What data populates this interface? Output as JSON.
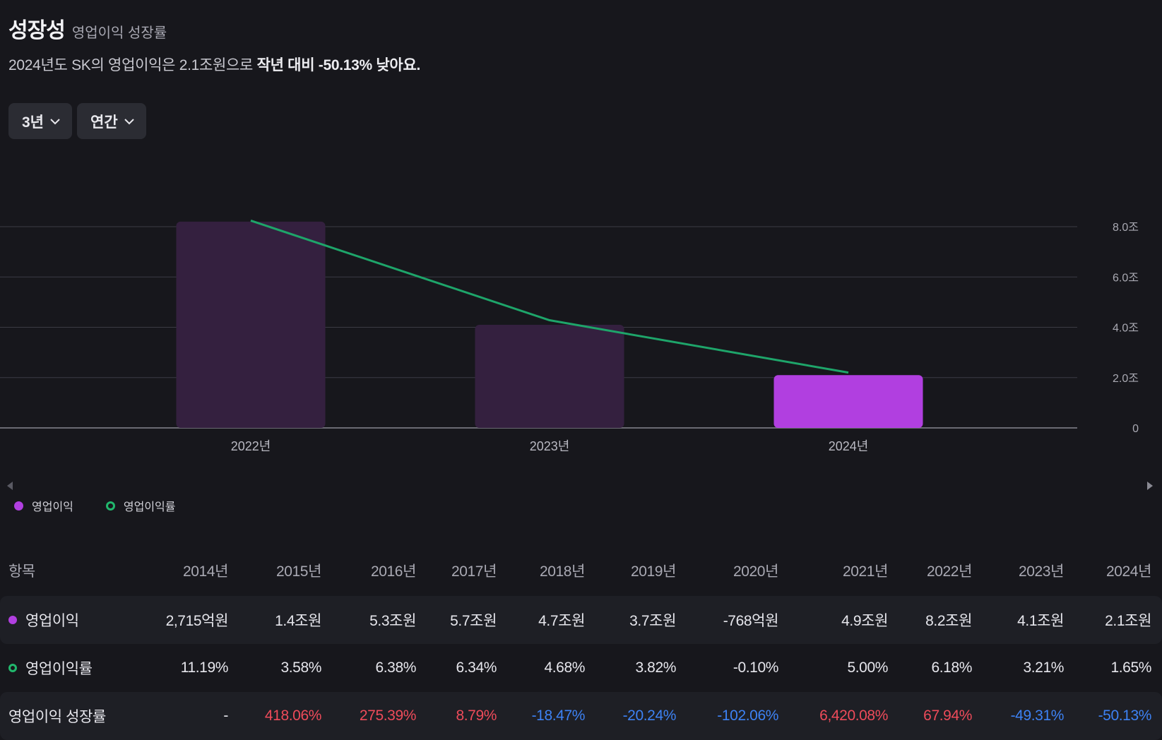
{
  "header": {
    "title": "성장성",
    "subtitle": "영업이익 성장률",
    "summary_plain": "2024년도 SK의 영업이익은 2.1조원으로 ",
    "summary_strong": "작년 대비 -50.13% 낮아요."
  },
  "controls": {
    "period_label": "3년",
    "frequency_label": "연간"
  },
  "colors": {
    "bar_active": "#b13fe0",
    "bar_inactive": "#34203f",
    "line": "#1ea56a",
    "grid": "#3b3b44",
    "positive": "#ee4b5a",
    "negative": "#3d82f4"
  },
  "chart_data": {
    "type": "bar",
    "categories": [
      "2022년",
      "2023년",
      "2024년"
    ],
    "series": [
      {
        "name": "영업이익",
        "type": "bar",
        "unit": "조원",
        "values": [
          8.2,
          4.1,
          2.1
        ]
      },
      {
        "name": "영업이익률",
        "type": "line",
        "unit": "%",
        "values": [
          6.18,
          3.21,
          1.65
        ]
      }
    ],
    "y_axis": {
      "ticks": [
        "0",
        "2.0조",
        "4.0조",
        "6.0조",
        "8.0조"
      ],
      "tick_values": [
        0,
        2,
        4,
        6,
        8
      ],
      "ylim": [
        0,
        8
      ]
    },
    "line_axis": {
      "ylim": [
        0,
        6
      ]
    },
    "highlight_category": "2024년",
    "legend": [
      "영업이익",
      "영업이익률"
    ]
  },
  "table": {
    "header_label": "항목",
    "years": [
      "2014년",
      "2015년",
      "2016년",
      "2017년",
      "2018년",
      "2019년",
      "2020년",
      "2021년",
      "2022년",
      "2023년",
      "2024년"
    ],
    "rows": [
      {
        "label": "영업이익",
        "marker": "filled",
        "values": [
          "2,715억원",
          "1.4조원",
          "5.3조원",
          "5.7조원",
          "4.7조원",
          "3.7조원",
          "-768억원",
          "4.9조원",
          "8.2조원",
          "4.1조원",
          "2.1조원"
        ]
      },
      {
        "label": "영업이익률",
        "marker": "ring",
        "values": [
          "11.19%",
          "3.58%",
          "6.38%",
          "6.34%",
          "4.68%",
          "3.82%",
          "-0.10%",
          "5.00%",
          "6.18%",
          "3.21%",
          "1.65%"
        ]
      },
      {
        "label": "영업이익 성장률",
        "marker": "none",
        "values": [
          "-",
          "418.06%",
          "275.39%",
          "8.79%",
          "-18.47%",
          "-20.24%",
          "-102.06%",
          "6,420.08%",
          "67.94%",
          "-49.31%",
          "-50.13%"
        ],
        "signs": [
          "none",
          "pos",
          "pos",
          "pos",
          "neg",
          "neg",
          "neg",
          "pos",
          "pos",
          "neg",
          "neg"
        ]
      }
    ]
  }
}
